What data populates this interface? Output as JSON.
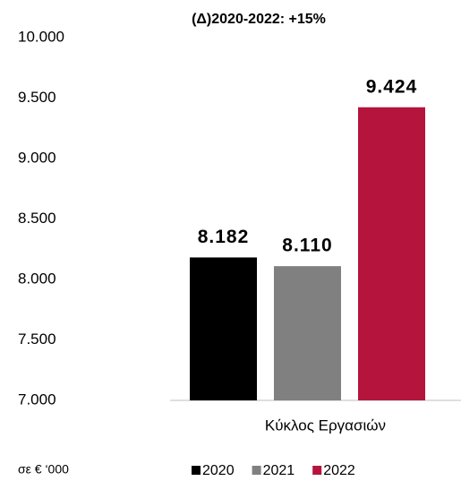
{
  "chart_data": {
    "type": "bar",
    "title": "(Δ)2020-2022: +15%",
    "note": "σε € ‘000",
    "categories": [
      "Κύκλος Εργασιών"
    ],
    "series": [
      {
        "name": "2020",
        "color": "#000000",
        "values": [
          8182
        ],
        "value_labels": [
          "8.182"
        ]
      },
      {
        "name": "2021",
        "color": "#808080",
        "values": [
          8110
        ],
        "value_labels": [
          "8.110"
        ]
      },
      {
        "name": "2022",
        "color": "#b5143c",
        "values": [
          9424
        ],
        "value_labels": [
          "9.424"
        ]
      }
    ],
    "ylim": [
      7000,
      10000
    ],
    "yticks": [
      {
        "value": 7000,
        "label": "7.000"
      },
      {
        "value": 7500,
        "label": "7.500"
      },
      {
        "value": 8000,
        "label": "8.000"
      },
      {
        "value": 8500,
        "label": "8.500"
      },
      {
        "value": 9000,
        "label": "9.000"
      },
      {
        "value": 9500,
        "label": "9.500"
      },
      {
        "value": 10000,
        "label": "10.000"
      }
    ],
    "grid": false,
    "legend": "bottom"
  }
}
